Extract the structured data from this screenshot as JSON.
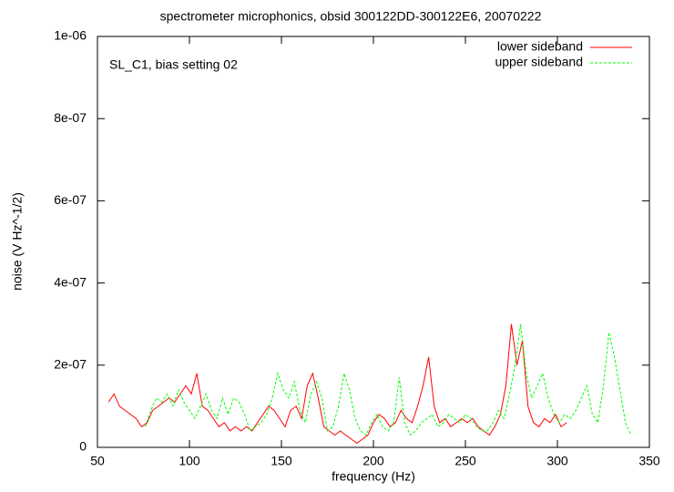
{
  "chart_data": {
    "type": "line",
    "title": "spectrometer microphonics, obsid 300122DD-300122E6, 20070222",
    "annotation": "SL_C1, bias setting 02",
    "xlabel": "frequency (Hz)",
    "ylabel": "noise (V Hz^-1/2)",
    "xlim": [
      50,
      350
    ],
    "xticks": [
      50,
      100,
      150,
      200,
      250,
      300,
      350
    ],
    "ylim": [
      0,
      1e-06
    ],
    "yticks": [
      0,
      {
        "value": 2e-07,
        "label": "2e-07"
      },
      {
        "value": 4e-07,
        "label": "4e-07"
      },
      {
        "value": 6e-07,
        "label": "6e-07"
      },
      {
        "value": 8e-07,
        "label": "8e-07"
      },
      {
        "value": 1e-06,
        "label": "1e-06"
      }
    ],
    "legend": "upper right",
    "series": [
      {
        "name": "lower sideband",
        "color": "#ff0000",
        "dash": false,
        "x": [
          56,
          59,
          62,
          65,
          68,
          71,
          74,
          77,
          80,
          83,
          86,
          89,
          92,
          95,
          98,
          101,
          104,
          107,
          110,
          113,
          116,
          119,
          122,
          125,
          128,
          131,
          134,
          137,
          140,
          143,
          146,
          149,
          152,
          155,
          158,
          161,
          164,
          167,
          170,
          173,
          176,
          179,
          182,
          185,
          188,
          191,
          194,
          197,
          200,
          203,
          206,
          209,
          212,
          215,
          218,
          221,
          224,
          227,
          230,
          233,
          236,
          239,
          242,
          245,
          248,
          251,
          254,
          257,
          260,
          263,
          266,
          269,
          272,
          275,
          278,
          281,
          284,
          287,
          290,
          293,
          296,
          299,
          302,
          305
        ],
        "values": [
          1.1e-07,
          1.3e-07,
          1e-07,
          9e-08,
          8e-08,
          7e-08,
          5e-08,
          6e-08,
          9e-08,
          1e-07,
          1.1e-07,
          1.2e-07,
          1.1e-07,
          1.3e-07,
          1.5e-07,
          1.3e-07,
          1.8e-07,
          1e-07,
          9e-08,
          7e-08,
          5e-08,
          6e-08,
          4e-08,
          5e-08,
          4e-08,
          5e-08,
          4e-08,
          6e-08,
          8e-08,
          1e-07,
          9e-08,
          7e-08,
          5e-08,
          9e-08,
          1e-07,
          7e-08,
          1.5e-07,
          1.8e-07,
          1.2e-07,
          5e-08,
          4e-08,
          3e-08,
          4e-08,
          3e-08,
          2e-08,
          1e-08,
          2e-08,
          3e-08,
          6e-08,
          8e-08,
          7e-08,
          5e-08,
          6e-08,
          9e-08,
          7e-08,
          6e-08,
          1e-07,
          1.5e-07,
          2.2e-07,
          1e-07,
          6e-08,
          7e-08,
          5e-08,
          6e-08,
          7e-08,
          6e-08,
          7e-08,
          5e-08,
          4e-08,
          3e-08,
          5e-08,
          8e-08,
          1.5e-07,
          3e-07,
          2e-07,
          2.6e-07,
          1e-07,
          6e-08,
          5e-08,
          7e-08,
          6e-08,
          8e-08,
          5e-08,
          6e-08
        ]
      },
      {
        "name": "upper sideband",
        "color": "#00ff00",
        "dash": true,
        "x": [
          76,
          79,
          82,
          85,
          88,
          91,
          94,
          97,
          100,
          103,
          106,
          109,
          112,
          115,
          118,
          121,
          124,
          127,
          130,
          133,
          136,
          139,
          142,
          145,
          148,
          151,
          154,
          157,
          160,
          163,
          166,
          169,
          172,
          175,
          178,
          181,
          184,
          187,
          190,
          193,
          196,
          199,
          202,
          205,
          208,
          211,
          214,
          217,
          220,
          223,
          226,
          229,
          232,
          235,
          238,
          241,
          244,
          247,
          250,
          253,
          256,
          259,
          262,
          265,
          268,
          271,
          274,
          277,
          280,
          283,
          286,
          289,
          292,
          295,
          298,
          301,
          304,
          307,
          310,
          313,
          316,
          319,
          322,
          325,
          328,
          331,
          334,
          337,
          340
        ],
        "values": [
          5e-08,
          9e-08,
          1.2e-07,
          1.1e-07,
          1.3e-07,
          1e-07,
          1.4e-07,
          1.1e-07,
          9e-08,
          7e-08,
          1e-07,
          1.3e-07,
          9e-08,
          7e-08,
          1.2e-07,
          8e-08,
          1.2e-07,
          1.1e-07,
          8e-08,
          4e-08,
          5e-08,
          6e-08,
          8e-08,
          1.2e-07,
          1.8e-07,
          1.4e-07,
          1.2e-07,
          1.6e-07,
          9e-08,
          6e-08,
          1.3e-07,
          1.6e-07,
          1.2e-07,
          4e-08,
          5e-08,
          1e-07,
          1.8e-07,
          1.4e-07,
          7e-08,
          4e-08,
          3e-08,
          6e-08,
          8e-08,
          5e-08,
          4e-08,
          6e-08,
          1.7e-07,
          6e-08,
          3e-08,
          4e-08,
          6e-08,
          7e-08,
          8e-08,
          5e-08,
          6e-08,
          8e-08,
          7e-08,
          6e-08,
          8e-08,
          7e-08,
          5e-08,
          4e-08,
          4e-08,
          6e-08,
          9e-08,
          7e-08,
          1.3e-07,
          2e-07,
          3e-07,
          1.8e-07,
          1.2e-07,
          1.5e-07,
          1.8e-07,
          1.2e-07,
          8e-08,
          6e-08,
          8e-08,
          7e-08,
          9e-08,
          1.2e-07,
          1.5e-07,
          8e-08,
          6e-08,
          1.5e-07,
          2.8e-07,
          2.2e-07,
          1.4e-07,
          6e-08,
          3e-08
        ]
      }
    ]
  }
}
